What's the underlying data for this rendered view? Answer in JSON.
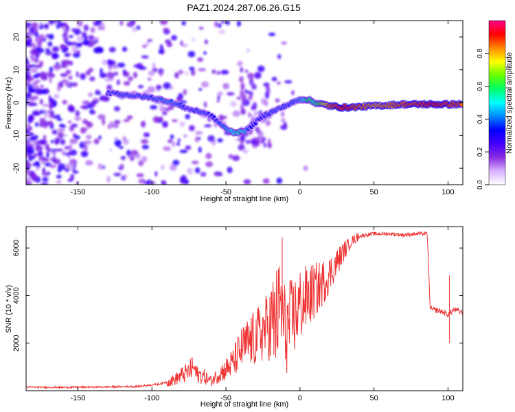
{
  "figure_title": "PAZ1.2024.287.06.26.G15",
  "chart_data": [
    {
      "type": "heatmap",
      "title": "",
      "xlabel": "Height of straight line (km)",
      "ylabel": "Frequency (Hz)",
      "xlim": [
        -185,
        110
      ],
      "ylim": [
        -25,
        25
      ],
      "xticks": [
        -150,
        -100,
        -50,
        0,
        50,
        100
      ],
      "yticks": [
        -20,
        -10,
        0,
        10,
        20
      ],
      "colorbar": {
        "label": "Normalized spectral amplitude",
        "range": [
          0,
          1
        ],
        "ticks": [
          0.0,
          0.2,
          0.4,
          0.6,
          0.8
        ],
        "tick_labels": [
          "0.0",
          "0.2",
          "0.4",
          "0.6",
          "0.8"
        ],
        "colormap": [
          "#ffffff",
          "#d8b2ff",
          "#8a2be2",
          "#4400ff",
          "#0000ff",
          "#0088ff",
          "#00ffff",
          "#00ff66",
          "#66ff00",
          "#ffff00",
          "#ff8800",
          "#ff0000",
          "#ff0088"
        ]
      },
      "ridge": {
        "x": [
          -130,
          -120,
          -110,
          -100,
          -90,
          -80,
          -75,
          -70,
          -65,
          -60,
          -55,
          -50,
          -45,
          -40,
          -35,
          -30,
          -25,
          -20,
          -15,
          -10,
          -5,
          0,
          5,
          10,
          20,
          30,
          50,
          70,
          90,
          110
        ],
        "y": [
          3,
          2.5,
          2,
          1.5,
          0.5,
          -1,
          -2,
          -2.5,
          -3,
          -4,
          -6,
          -8,
          -9,
          -9,
          -8,
          -6,
          -4,
          -3,
          -2,
          -1,
          0,
          1,
          1,
          0,
          -1,
          -1.5,
          -1,
          -0.5,
          -0.5,
          -0.5
        ],
        "amplitude": [
          0.3,
          0.35,
          0.35,
          0.35,
          0.4,
          0.35,
          0.3,
          0.35,
          0.35,
          0.3,
          0.35,
          0.4,
          0.5,
          0.55,
          0.35,
          0.3,
          0.3,
          0.35,
          0.35,
          0.35,
          0.35,
          0.4,
          0.6,
          0.55,
          0.85,
          0.9,
          0.8,
          0.85,
          0.9,
          0.85
        ]
      }
    },
    {
      "type": "line",
      "title": "",
      "xlabel": "Height of straight line (km)",
      "ylabel": "SNR (10 * v/v)",
      "xlim": [
        -185,
        110
      ],
      "ylim": [
        0,
        6900
      ],
      "xticks": [
        -150,
        -100,
        -50,
        0,
        50,
        100
      ],
      "yticks": [
        2000,
        4000,
        6000
      ],
      "color": "#ee3333",
      "x": [
        -185,
        -160,
        -130,
        -110,
        -95,
        -85,
        -80,
        -75,
        -72,
        -70,
        -65,
        -60,
        -55,
        -50,
        -45,
        -40,
        -35,
        -30,
        -25,
        -20,
        -18,
        -15,
        -13,
        -10,
        -5,
        0,
        5,
        10,
        15,
        20,
        25,
        30,
        35,
        40,
        45,
        50,
        60,
        70,
        80,
        86,
        87,
        88,
        90,
        95,
        100,
        102,
        104,
        110
      ],
      "y": [
        150,
        140,
        160,
        180,
        280,
        450,
        650,
        800,
        1000,
        700,
        600,
        400,
        700,
        900,
        1200,
        1700,
        2000,
        2200,
        2500,
        2800,
        2700,
        3200,
        3600,
        2500,
        3000,
        3600,
        3900,
        4200,
        4500,
        4900,
        5400,
        5900,
        6300,
        6500,
        6550,
        6600,
        6600,
        6550,
        6600,
        6600,
        5000,
        3450,
        3400,
        3350,
        3200,
        3300,
        3400,
        3300
      ],
      "annotations": [
        {
          "x": -73,
          "y": 1400,
          "label": ""
        },
        {
          "x": -12,
          "y": 6450,
          "label": ""
        },
        {
          "x": 101,
          "y": 4850,
          "label": ""
        },
        {
          "x": 101,
          "y": 2000,
          "label": ""
        }
      ]
    }
  ]
}
